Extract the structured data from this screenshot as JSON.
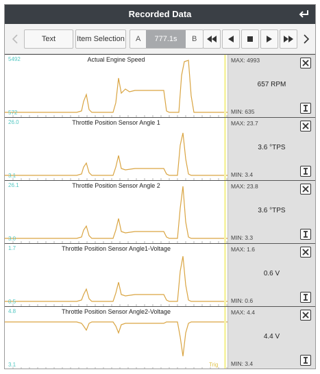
{
  "header": {
    "title": "Recorded Data"
  },
  "toolbar": {
    "text_label": "Text",
    "item_selection_label": "Item Selection",
    "marker_a": "A",
    "time_value": "777.1s",
    "marker_b": "B"
  },
  "panels": [
    {
      "title": "Actual Engine Speed",
      "y_max": "5492",
      "y_min": "572",
      "max_text": "MAX: 4993",
      "min_text": "MIN: 635",
      "value": "657 RPM"
    },
    {
      "title": "Throttle Position Sensor Angle 1",
      "y_max": "26.0",
      "y_min": "3.1",
      "max_text": "MAX: 23.7",
      "min_text": "MIN: 3.4",
      "value": "3.6 °TPS"
    },
    {
      "title": "Throttle Position Sensor Angle 2",
      "y_max": "26.1",
      "y_min": "3.0",
      "max_text": "MAX: 23.8",
      "min_text": "MIN: 3.3",
      "value": "3.6 °TPS"
    },
    {
      "title": "Throttle Position Sensor Angle1-Voltage",
      "y_max": "1.7",
      "y_min": "0.5",
      "max_text": "MAX: 1.6",
      "min_text": "MIN: 0.6",
      "value": "0.6 V"
    },
    {
      "title": "Throttle Position Sensor Angle2-Voltage",
      "y_max": "4.8",
      "y_min": "3.1",
      "max_text": "MAX: 4.4",
      "min_text": "MIN: 3.4",
      "value": "4.4 V",
      "trigger_label": "Trig"
    }
  ],
  "icons": {
    "back": "return-arrow-icon",
    "prev": "chevron-left-icon",
    "next": "chevron-right-icon",
    "rewind": "fast-rewind-icon",
    "step_back": "step-back-icon",
    "stop": "stop-icon",
    "play": "play-icon",
    "fast_forward": "fast-forward-icon",
    "close": "close-x-icon",
    "cursor": "cursor-i-icon"
  },
  "colors": {
    "trace": "#d9a441",
    "axis_label": "#52c7c2",
    "header_bg": "#3a3f45",
    "cursor_line": "#f6f3a8"
  }
}
